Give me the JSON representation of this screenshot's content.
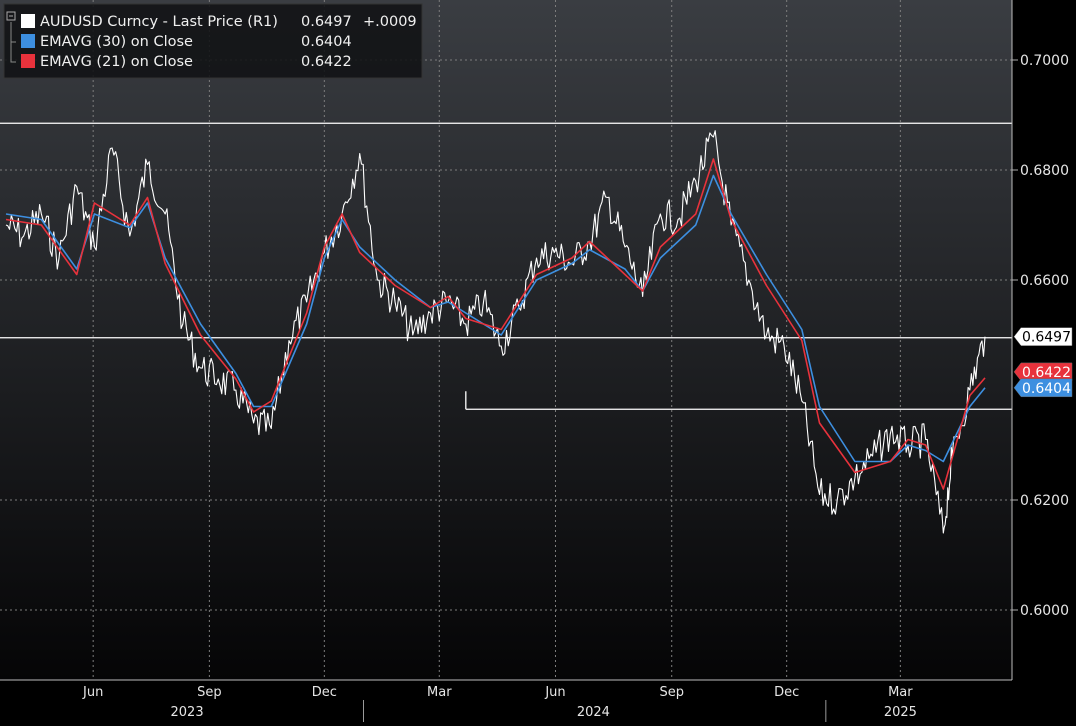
{
  "legend": [
    {
      "label": "AUDUSD Curncy - Last Price (R1)",
      "value": "0.6497",
      "change": "+.0009",
      "color": "#ffffff"
    },
    {
      "label": "EMAVG (30)  on Close",
      "value": "0.6404",
      "color": "#3d8fe0"
    },
    {
      "label": "EMAVG (21)  on Close",
      "value": "0.6422",
      "color": "#e8323c"
    }
  ],
  "price_tags": [
    {
      "value": "0.6497",
      "bg": "#ffffff",
      "fg": "#000000"
    },
    {
      "value": "0.6422",
      "bg": "#e8323c",
      "fg": "#ffffff"
    },
    {
      "value": "0.6404",
      "bg": "#3d8fe0",
      "fg": "#ffffff"
    }
  ],
  "chart_data": {
    "type": "line",
    "y_axis_side": "right",
    "ylim": [
      0.588,
      0.712
    ],
    "y_ticks": [
      "0.7000",
      "0.6800",
      "0.6600",
      "0.6200",
      "0.6000"
    ],
    "x_month_labels": [
      "Jun",
      "Sep",
      "Dec",
      "Mar",
      "Jun",
      "Sep",
      "Dec",
      "Mar"
    ],
    "x_year_labels": [
      "2023",
      "2024",
      "2025"
    ],
    "grid": true,
    "legend_position": "top-left",
    "horizontal_lines": [
      0.6885,
      0.6495
    ],
    "support_segment": {
      "y": 0.6365,
      "from": "2024-03-22",
      "to": "2025-05-07"
    },
    "series": [
      {
        "name": "AUDUSD Curncy - Last Price (R1)",
        "color": "#ffffff",
        "x": [
          "2023-03-24",
          "2023-04-07",
          "2023-04-21",
          "2023-05-05",
          "2023-05-19",
          "2023-06-02",
          "2023-06-16",
          "2023-06-30",
          "2023-07-14",
          "2023-07-28",
          "2023-08-11",
          "2023-08-25",
          "2023-09-08",
          "2023-09-22",
          "2023-10-06",
          "2023-10-20",
          "2023-11-03",
          "2023-11-17",
          "2023-12-01",
          "2023-12-15",
          "2023-12-29",
          "2024-01-12",
          "2024-01-26",
          "2024-02-09",
          "2024-02-23",
          "2024-03-08",
          "2024-03-22",
          "2024-04-05",
          "2024-04-19",
          "2024-05-03",
          "2024-05-17",
          "2024-05-31",
          "2024-06-14",
          "2024-06-28",
          "2024-07-12",
          "2024-07-26",
          "2024-08-09",
          "2024-08-23",
          "2024-09-06",
          "2024-09-20",
          "2024-10-04",
          "2024-10-18",
          "2024-11-01",
          "2024-11-15",
          "2024-11-29",
          "2024-12-13",
          "2024-12-27",
          "2025-01-10",
          "2025-01-24",
          "2025-02-07",
          "2025-02-21",
          "2025-03-07",
          "2025-03-21",
          "2025-04-04",
          "2025-04-11",
          "2025-04-25",
          "2025-05-07"
        ],
        "y": [
          0.67,
          0.668,
          0.672,
          0.664,
          0.677,
          0.666,
          0.684,
          0.668,
          0.681,
          0.672,
          0.652,
          0.644,
          0.642,
          0.64,
          0.634,
          0.633,
          0.649,
          0.656,
          0.665,
          0.672,
          0.683,
          0.66,
          0.656,
          0.65,
          0.654,
          0.656,
          0.652,
          0.656,
          0.648,
          0.655,
          0.664,
          0.665,
          0.663,
          0.667,
          0.675,
          0.666,
          0.657,
          0.672,
          0.671,
          0.678,
          0.686,
          0.67,
          0.66,
          0.65,
          0.648,
          0.638,
          0.621,
          0.62,
          0.624,
          0.628,
          0.632,
          0.63,
          0.631,
          0.614,
          0.628,
          0.64,
          0.6497
        ]
      },
      {
        "name": "EMAVG (30)  on Close",
        "color": "#3d8fe0",
        "x": [
          "2023-03-24",
          "2023-04-21",
          "2023-05-19",
          "2023-06-02",
          "2023-06-30",
          "2023-07-14",
          "2023-07-28",
          "2023-08-25",
          "2023-09-22",
          "2023-10-06",
          "2023-10-20",
          "2023-11-17",
          "2023-12-01",
          "2023-12-15",
          "2023-12-29",
          "2024-01-26",
          "2024-02-23",
          "2024-03-08",
          "2024-03-22",
          "2024-04-19",
          "2024-05-17",
          "2024-06-14",
          "2024-06-28",
          "2024-07-26",
          "2024-08-09",
          "2024-08-23",
          "2024-09-20",
          "2024-10-04",
          "2024-10-18",
          "2024-11-15",
          "2024-12-13",
          "2024-12-27",
          "2025-01-24",
          "2025-02-21",
          "2025-03-07",
          "2025-03-21",
          "2025-04-04",
          "2025-04-25",
          "2025-05-07"
        ],
        "y": [
          0.672,
          0.671,
          0.662,
          0.672,
          0.6695,
          0.674,
          0.664,
          0.652,
          0.643,
          0.637,
          0.637,
          0.652,
          0.664,
          0.671,
          0.666,
          0.66,
          0.655,
          0.656,
          0.654,
          0.65,
          0.66,
          0.663,
          0.6655,
          0.662,
          0.658,
          0.664,
          0.67,
          0.679,
          0.672,
          0.661,
          0.651,
          0.637,
          0.627,
          0.627,
          0.63,
          0.629,
          0.627,
          0.637,
          0.6404
        ]
      },
      {
        "name": "EMAVG (21)  on Close",
        "color": "#e8323c",
        "x": [
          "2023-03-24",
          "2023-04-21",
          "2023-05-19",
          "2023-06-02",
          "2023-06-30",
          "2023-07-14",
          "2023-07-28",
          "2023-08-25",
          "2023-09-22",
          "2023-10-06",
          "2023-10-20",
          "2023-11-17",
          "2023-12-01",
          "2023-12-15",
          "2023-12-29",
          "2024-01-26",
          "2024-02-23",
          "2024-03-08",
          "2024-03-22",
          "2024-04-19",
          "2024-05-17",
          "2024-06-14",
          "2024-06-28",
          "2024-07-26",
          "2024-08-09",
          "2024-08-23",
          "2024-09-20",
          "2024-10-04",
          "2024-10-18",
          "2024-11-15",
          "2024-12-13",
          "2024-12-27",
          "2025-01-24",
          "2025-02-21",
          "2025-03-07",
          "2025-03-21",
          "2025-04-04",
          "2025-04-25",
          "2025-05-07"
        ],
        "y": [
          0.671,
          0.67,
          0.661,
          0.674,
          0.67,
          0.675,
          0.663,
          0.65,
          0.642,
          0.636,
          0.638,
          0.654,
          0.666,
          0.672,
          0.665,
          0.659,
          0.655,
          0.657,
          0.653,
          0.651,
          0.661,
          0.664,
          0.667,
          0.661,
          0.658,
          0.666,
          0.672,
          0.682,
          0.671,
          0.659,
          0.649,
          0.634,
          0.625,
          0.627,
          0.631,
          0.63,
          0.622,
          0.639,
          0.6422
        ]
      }
    ]
  }
}
